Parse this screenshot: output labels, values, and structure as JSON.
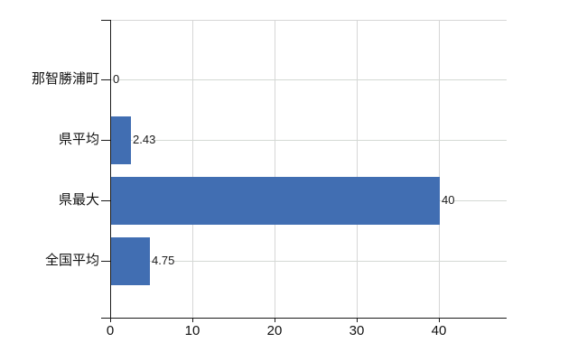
{
  "chart_data": {
    "type": "bar",
    "orientation": "horizontal",
    "title": "",
    "categories": [
      "那智勝浦町",
      "県平均",
      "県最大",
      "全国平均"
    ],
    "values": [
      0,
      2.43,
      40,
      4.75
    ],
    "value_labels": [
      "0",
      "2.43",
      "40",
      "4.75"
    ],
    "x_ticks": [
      0,
      10,
      20,
      30,
      40
    ],
    "xlim": [
      0,
      48.2
    ],
    "grid": true,
    "legend": "none",
    "colors": {
      "bar": "#416eb2",
      "grid_vertical": "#d6d6d6",
      "grid_horizontal": "#d4d9d4",
      "axis": "#1a1a1a",
      "text": "#111111",
      "background": "#ffffff"
    }
  }
}
